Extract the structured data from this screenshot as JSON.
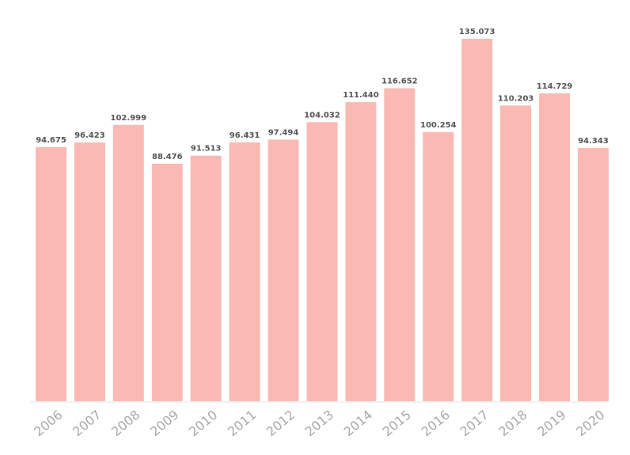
{
  "chart_data": {
    "type": "bar",
    "title": "",
    "xlabel": "",
    "ylabel": "",
    "categories": [
      "2006",
      "2007",
      "2008",
      "2009",
      "2010",
      "2011",
      "2012",
      "2013",
      "2014",
      "2015",
      "2016",
      "2017",
      "2018",
      "2019",
      "2020"
    ],
    "values": [
      94.675,
      96.423,
      102.999,
      88.476,
      91.513,
      96.431,
      97.494,
      104.032,
      111.44,
      116.652,
      100.254,
      135.073,
      110.203,
      114.729,
      94.343
    ],
    "value_labels": [
      "94.675",
      "96.423",
      "102.999",
      "88.476",
      "91.513",
      "96.431",
      "97.494",
      "104.032",
      "111.440",
      "116.652",
      "100.254",
      "135.073",
      "110.203",
      "114.729",
      "94.343"
    ],
    "ylim": [
      0,
      135.073
    ],
    "grid": false,
    "bar_color": "#fbb9b3"
  }
}
